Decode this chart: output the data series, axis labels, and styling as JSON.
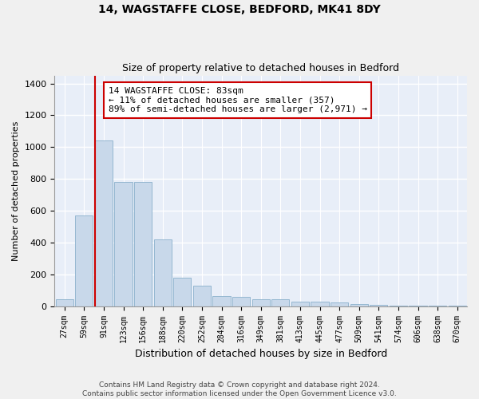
{
  "title1": "14, WAGSTAFFE CLOSE, BEDFORD, MK41 8DY",
  "title2": "Size of property relative to detached houses in Bedford",
  "xlabel": "Distribution of detached houses by size in Bedford",
  "ylabel": "Number of detached properties",
  "bar_color": "#c8d8ea",
  "bar_edgecolor": "#8ab0cc",
  "background_color": "#e8eef8",
  "grid_color": "#ffffff",
  "fig_background": "#f0f0f0",
  "categories": [
    "27sqm",
    "59sqm",
    "91sqm",
    "123sqm",
    "156sqm",
    "188sqm",
    "220sqm",
    "252sqm",
    "284sqm",
    "316sqm",
    "349sqm",
    "381sqm",
    "413sqm",
    "445sqm",
    "477sqm",
    "509sqm",
    "541sqm",
    "574sqm",
    "606sqm",
    "638sqm",
    "670sqm"
  ],
  "values": [
    45,
    570,
    1040,
    780,
    780,
    420,
    178,
    130,
    65,
    60,
    45,
    45,
    28,
    28,
    22,
    15,
    10,
    5,
    3,
    2,
    1
  ],
  "ylim": [
    0,
    1450
  ],
  "yticks": [
    0,
    200,
    400,
    600,
    800,
    1000,
    1200,
    1400
  ],
  "vline_color": "#cc0000",
  "annotation_text": "14 WAGSTAFFE CLOSE: 83sqm\n← 11% of detached houses are smaller (357)\n89% of semi-detached houses are larger (2,971) →",
  "annotation_box_edgecolor": "#cc0000",
  "annotation_box_facecolor": "#ffffff",
  "footer1": "Contains HM Land Registry data © Crown copyright and database right 2024.",
  "footer2": "Contains public sector information licensed under the Open Government Licence v3.0."
}
